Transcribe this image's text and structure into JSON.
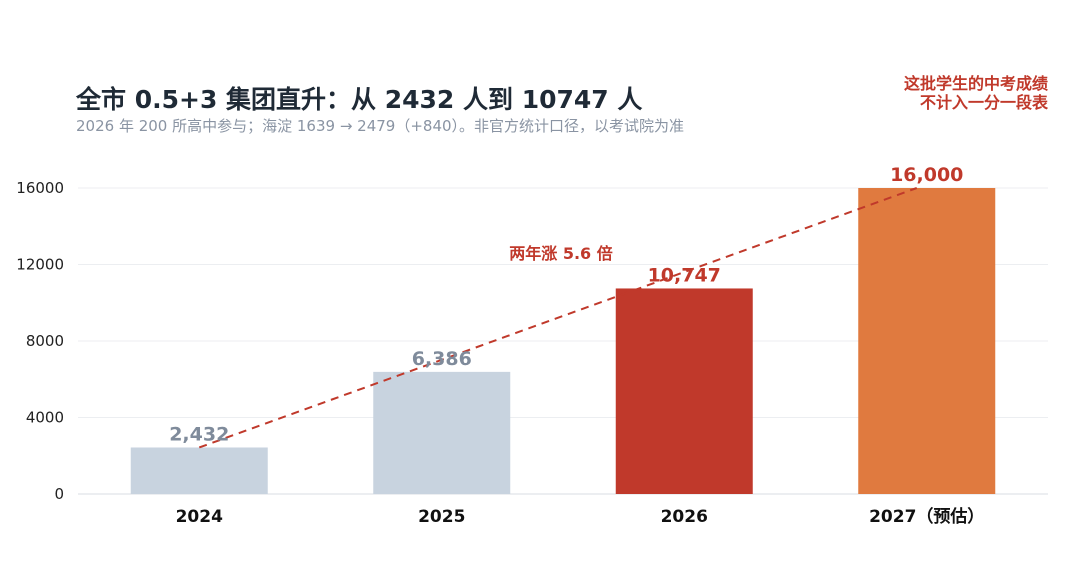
{
  "header": {
    "title": "全市 0.5+3 集团直升：从 2432 人到 10747 人",
    "subtitle": "2026 年 200 所高中参与；海淀 1639 → 2479（+840）。非官方统计口径，以考试院为准"
  },
  "note": {
    "line1": "这批学生的中考成绩",
    "line2": "不计入一分一段表"
  },
  "colors": {
    "past": "#c8d3df",
    "current": "#c0392b",
    "forecast": "#e07a3f",
    "past_label": "#7f8b9b",
    "trend": "#c0392b"
  },
  "chart_data": {
    "type": "bar",
    "categories": [
      "2024",
      "2025",
      "2026",
      "2027（预估）"
    ],
    "values": [
      2432,
      6386,
      10747,
      16000
    ],
    "value_labels": [
      "2,432",
      "6,386",
      "10,747",
      "16,000"
    ],
    "yticks": [
      "0",
      "4000",
      "8000",
      "12000",
      "16000"
    ],
    "ylim": [
      0,
      16000
    ],
    "grid": true,
    "trendline": {
      "from": "2024",
      "to": "2027（预估）",
      "style": "dashed"
    },
    "annotation": "两年涨 5.6 倍"
  }
}
